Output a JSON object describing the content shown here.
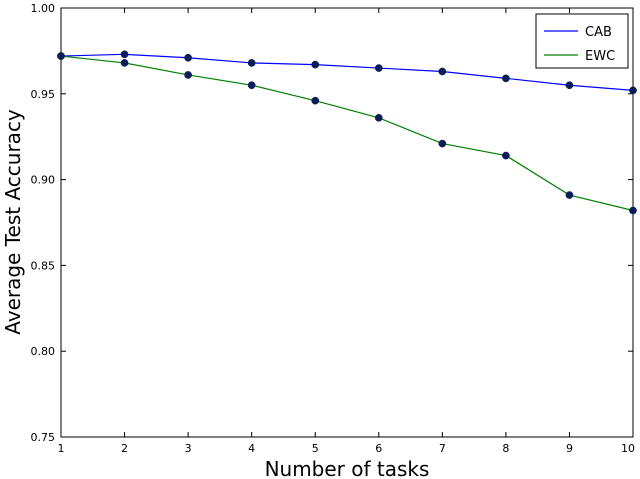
{
  "chart_data": {
    "type": "line",
    "title": "",
    "xlabel": "Number of tasks",
    "ylabel": "Average Test Accuracy",
    "x": [
      1,
      2,
      3,
      4,
      5,
      6,
      7,
      8,
      9,
      10
    ],
    "xlim": [
      1,
      10
    ],
    "ylim": [
      0.75,
      1.0
    ],
    "xticks": [
      "1",
      "2",
      "3",
      "4",
      "5",
      "6",
      "7",
      "8",
      "9",
      "10"
    ],
    "yticks": [
      "0.75",
      "0.80",
      "0.85",
      "0.90",
      "0.95",
      "1.00"
    ],
    "grid": false,
    "legend_position": "top-right",
    "series": [
      {
        "name": "CAB",
        "color": "#0000ff",
        "values": [
          0.972,
          0.973,
          0.971,
          0.968,
          0.967,
          0.965,
          0.963,
          0.959,
          0.955,
          0.952
        ]
      },
      {
        "name": "EWC",
        "color": "#008000",
        "values": [
          0.972,
          0.968,
          0.961,
          0.955,
          0.946,
          0.936,
          0.921,
          0.914,
          0.891,
          0.882
        ]
      }
    ],
    "marker_color": "#0a1d57"
  }
}
